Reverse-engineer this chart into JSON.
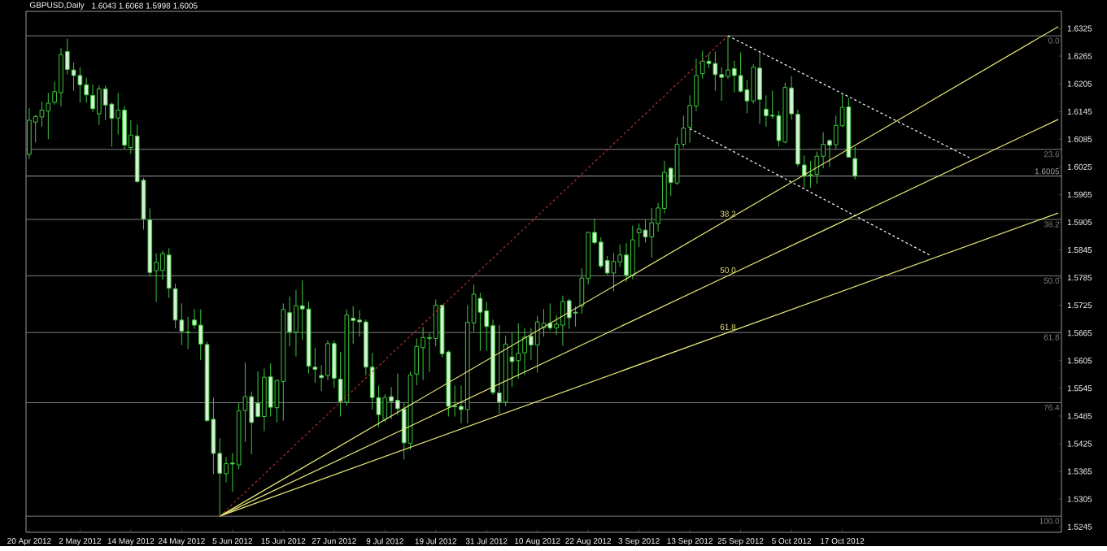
{
  "chart_data": {
    "type": "candlestick",
    "title": "GBPUSD,Daily",
    "subtitle": "1.6043 1.6068 1.5998 1.6005",
    "color": "#3cc83c",
    "categories": [
      "20 Apr 2012",
      null,
      null,
      null,
      null,
      null,
      null,
      null,
      "2 May 2012",
      null,
      null,
      null,
      null,
      null,
      null,
      null,
      "14 May 2012",
      null,
      null,
      null,
      null,
      null,
      null,
      null,
      "24 May 2012",
      null,
      null,
      null,
      null,
      null,
      null,
      null,
      "5 Jun 2012",
      null,
      null,
      null,
      null,
      null,
      null,
      null,
      "15 Jun 2012",
      null,
      null,
      null,
      null,
      null,
      null,
      null,
      "27 Jun 2012",
      null,
      null,
      null,
      null,
      null,
      null,
      null,
      "9 Jul 2012",
      null,
      null,
      null,
      null,
      null,
      null,
      null,
      "19 Jul 2012",
      null,
      null,
      null,
      null,
      null,
      null,
      null,
      "31 Jul 2012",
      null,
      null,
      null,
      null,
      null,
      null,
      null,
      "10 Aug 2012",
      null,
      null,
      null,
      null,
      null,
      null,
      null,
      "22 Aug 2012",
      null,
      null,
      null,
      null,
      null,
      null,
      null,
      "3 Sep 2012",
      null,
      null,
      null,
      null,
      null,
      null,
      null,
      "13 Sep 2012",
      null,
      null,
      null,
      null,
      null,
      null,
      null,
      "25 Sep 2012",
      null,
      null,
      null,
      null,
      null,
      null,
      null,
      "5 Oct 2012",
      null,
      null,
      null,
      null,
      null,
      null,
      null,
      "17 Oct 2012",
      null,
      null,
      null,
      null,
      null,
      null,
      null,
      null,
      null,
      null,
      null,
      null,
      null,
      null,
      null,
      null,
      null,
      null,
      null,
      null,
      null,
      null,
      null,
      null,
      null,
      null,
      null,
      null,
      null,
      null,
      null,
      null,
      null,
      null
    ],
    "ohlc": [
      [
        1.6052,
        1.6152,
        1.6042,
        1.6126
      ],
      [
        1.6122,
        1.6138,
        1.6078,
        1.6134
      ],
      [
        1.6133,
        1.6166,
        1.6112,
        1.6148
      ],
      [
        1.6146,
        1.6185,
        1.6085,
        1.6163
      ],
      [
        1.6165,
        1.621,
        1.616,
        1.6188
      ],
      [
        1.6186,
        1.6283,
        1.6156,
        1.6268
      ],
      [
        1.6275,
        1.6303,
        1.6225,
        1.6236
      ],
      [
        1.6235,
        1.6251,
        1.619,
        1.6223
      ],
      [
        1.6223,
        1.6241,
        1.6164,
        1.6203
      ],
      [
        1.6203,
        1.6218,
        1.6164,
        1.6181
      ],
      [
        1.618,
        1.6204,
        1.6144,
        1.6151
      ],
      [
        1.614,
        1.6201,
        1.6116,
        1.6194
      ],
      [
        1.6194,
        1.6201,
        1.6126,
        1.6159
      ],
      [
        1.6161,
        1.6164,
        1.6068,
        1.613
      ],
      [
        1.6131,
        1.6185,
        1.6095,
        1.6148
      ],
      [
        1.6148,
        1.6157,
        1.6063,
        1.6072
      ],
      [
        1.6067,
        1.6126,
        1.6053,
        1.6094
      ],
      [
        1.6092,
        1.6117,
        1.599,
        1.5993
      ],
      [
        1.5996,
        1.6001,
        1.5889,
        1.5912
      ],
      [
        1.591,
        1.5935,
        1.5787,
        1.5796
      ],
      [
        1.58,
        1.5838,
        1.5732,
        1.5818
      ],
      [
        1.5801,
        1.5843,
        1.578,
        1.5837
      ],
      [
        1.5834,
        1.5849,
        1.5741,
        1.5762
      ],
      [
        1.5761,
        1.5772,
        1.5675,
        1.5693
      ],
      [
        1.5693,
        1.5729,
        1.5639,
        1.5669
      ],
      [
        1.5667,
        1.57,
        1.563,
        1.5666
      ],
      [
        1.5693,
        1.5717,
        1.5674,
        1.5682
      ],
      [
        1.5682,
        1.5716,
        1.5606,
        1.5641
      ],
      [
        1.564,
        1.5646,
        1.5473,
        1.5475
      ],
      [
        1.5478,
        1.5525,
        1.5359,
        1.5404
      ],
      [
        1.5404,
        1.5437,
        1.5268,
        1.5361
      ],
      [
        1.536,
        1.5396,
        1.5341,
        1.5382
      ],
      [
        1.5383,
        1.5405,
        1.5321,
        1.5381
      ],
      [
        1.5379,
        1.5513,
        1.537,
        1.5496
      ],
      [
        1.5497,
        1.5601,
        1.5429,
        1.5527
      ],
      [
        1.5527,
        1.5538,
        1.5402,
        1.5471
      ],
      [
        1.5513,
        1.5582,
        1.5482,
        1.5484
      ],
      [
        1.5484,
        1.5588,
        1.5452,
        1.5569
      ],
      [
        1.557,
        1.5599,
        1.5484,
        1.5504
      ],
      [
        1.5503,
        1.5564,
        1.5471,
        1.5562
      ],
      [
        1.556,
        1.5729,
        1.5475,
        1.5716
      ],
      [
        1.5709,
        1.5744,
        1.5636,
        1.5667
      ],
      [
        1.5667,
        1.5758,
        1.5614,
        1.5724
      ],
      [
        1.5724,
        1.5779,
        1.565,
        1.5717
      ],
      [
        1.5717,
        1.5733,
        1.5577,
        1.5593
      ],
      [
        1.5591,
        1.5633,
        1.5557,
        1.5586
      ],
      [
        1.5573,
        1.5595,
        1.5539,
        1.5568
      ],
      [
        1.5573,
        1.5649,
        1.5563,
        1.5642
      ],
      [
        1.5642,
        1.5649,
        1.5546,
        1.5567
      ],
      [
        1.5565,
        1.5624,
        1.5484,
        1.5516
      ],
      [
        1.5515,
        1.5716,
        1.5507,
        1.5704
      ],
      [
        1.5697,
        1.5723,
        1.5641,
        1.5692
      ],
      [
        1.5693,
        1.5714,
        1.5657,
        1.5689
      ],
      [
        1.5689,
        1.5694,
        1.5573,
        1.5591
      ],
      [
        1.5591,
        1.5622,
        1.5499,
        1.5525
      ],
      [
        1.5525,
        1.5551,
        1.5461,
        1.5488
      ],
      [
        1.5478,
        1.5532,
        1.5472,
        1.5525
      ],
      [
        1.5527,
        1.5548,
        1.5478,
        1.5517
      ],
      [
        1.5519,
        1.5577,
        1.5487,
        1.5501
      ],
      [
        1.55,
        1.5514,
        1.5391,
        1.5427
      ],
      [
        1.5426,
        1.5581,
        1.5412,
        1.5574
      ],
      [
        1.5576,
        1.5653,
        1.5552,
        1.5636
      ],
      [
        1.5633,
        1.5678,
        1.5563,
        1.5655
      ],
      [
        1.5653,
        1.5664,
        1.558,
        1.5655
      ],
      [
        1.5653,
        1.5738,
        1.5636,
        1.5725
      ],
      [
        1.5725,
        1.5726,
        1.5612,
        1.562
      ],
      [
        1.5624,
        1.5627,
        1.5484,
        1.5506
      ],
      [
        1.5507,
        1.5551,
        1.5484,
        1.5505
      ],
      [
        1.5506,
        1.5551,
        1.5469,
        1.5499
      ],
      [
        1.5499,
        1.5725,
        1.5469,
        1.5688
      ],
      [
        1.5687,
        1.577,
        1.5668,
        1.5749
      ],
      [
        1.574,
        1.5752,
        1.5626,
        1.571
      ],
      [
        1.5713,
        1.5732,
        1.5626,
        1.5679
      ],
      [
        1.5681,
        1.5694,
        1.5531,
        1.5536
      ],
      [
        1.5535,
        1.5682,
        1.549,
        1.5515
      ],
      [
        1.5515,
        1.5659,
        1.5506,
        1.5641
      ],
      [
        1.5613,
        1.5666,
        1.5548,
        1.5603
      ],
      [
        1.5605,
        1.5686,
        1.5566,
        1.5621
      ],
      [
        1.5622,
        1.5676,
        1.5574,
        1.5656
      ],
      [
        1.5658,
        1.5676,
        1.5606,
        1.5639
      ],
      [
        1.5639,
        1.5702,
        1.5579,
        1.5689
      ],
      [
        1.5676,
        1.5717,
        1.5657,
        1.5686
      ],
      [
        1.5686,
        1.5729,
        1.5671,
        1.5676
      ],
      [
        1.5676,
        1.5703,
        1.5661,
        1.5684
      ],
      [
        1.5682,
        1.5746,
        1.5637,
        1.5733
      ],
      [
        1.5735,
        1.5739,
        1.5674,
        1.5698
      ],
      [
        1.571,
        1.5723,
        1.5679,
        1.5708
      ],
      [
        1.5723,
        1.5805,
        1.5707,
        1.5784
      ],
      [
        1.5783,
        1.5884,
        1.577,
        1.5883
      ],
      [
        1.5883,
        1.5913,
        1.5857,
        1.5861
      ],
      [
        1.5862,
        1.5872,
        1.5805,
        1.581
      ],
      [
        1.5822,
        1.5832,
        1.5791,
        1.5795
      ],
      [
        1.5795,
        1.5838,
        1.5755,
        1.582
      ],
      [
        1.5819,
        1.5857,
        1.5808,
        1.5834
      ],
      [
        1.5834,
        1.586,
        1.5776,
        1.579
      ],
      [
        1.579,
        1.5898,
        1.5781,
        1.5867
      ],
      [
        1.5882,
        1.5902,
        1.5851,
        1.589
      ],
      [
        1.5888,
        1.5911,
        1.5861,
        1.5873
      ],
      [
        1.5873,
        1.5936,
        1.5828,
        1.5904
      ],
      [
        1.5902,
        1.5947,
        1.5885,
        1.5936
      ],
      [
        1.5935,
        1.6038,
        1.5924,
        1.6013
      ],
      [
        1.6022,
        1.6024,
        1.5962,
        1.5991
      ],
      [
        1.599,
        1.6089,
        1.5986,
        1.6074
      ],
      [
        1.6074,
        1.6136,
        1.6067,
        1.6109
      ],
      [
        1.6111,
        1.618,
        1.6077,
        1.6158
      ],
      [
        1.6157,
        1.626,
        1.6146,
        1.6223
      ],
      [
        1.6227,
        1.6277,
        1.6216,
        1.6254
      ],
      [
        1.6254,
        1.6271,
        1.6239,
        1.6249
      ],
      [
        1.6249,
        1.6275,
        1.619,
        1.6225
      ],
      [
        1.6225,
        1.6241,
        1.6168,
        1.6219
      ],
      [
        1.6221,
        1.6309,
        1.6216,
        1.6235
      ],
      [
        1.6238,
        1.6255,
        1.6186,
        1.6223
      ],
      [
        1.6223,
        1.6273,
        1.6186,
        1.6189
      ],
      [
        1.6192,
        1.6213,
        1.6141,
        1.6168
      ],
      [
        1.6168,
        1.6248,
        1.6162,
        1.6241
      ],
      [
        1.6239,
        1.6275,
        1.6118,
        1.6171
      ],
      [
        1.615,
        1.618,
        1.6112,
        1.6136
      ],
      [
        1.6137,
        1.619,
        1.6129,
        1.6135
      ],
      [
        1.6136,
        1.6146,
        1.6069,
        1.6082
      ],
      [
        1.6079,
        1.6207,
        1.6076,
        1.6197
      ],
      [
        1.6196,
        1.6222,
        1.6127,
        1.614
      ],
      [
        1.6139,
        1.6149,
        1.6026,
        1.6031
      ],
      [
        1.6029,
        1.605,
        1.598,
        1.6005
      ],
      [
        1.6008,
        1.6038,
        1.598,
        1.6006
      ],
      [
        1.6009,
        1.6058,
        1.5988,
        1.6048
      ],
      [
        1.6048,
        1.61,
        1.6022,
        1.6074
      ],
      [
        1.6082,
        1.6085,
        1.6025,
        1.6072
      ],
      [
        1.6073,
        1.6136,
        1.6064,
        1.6115
      ],
      [
        1.6114,
        1.6182,
        1.6111,
        1.6154
      ],
      [
        1.6155,
        1.6174,
        1.6045,
        1.6046
      ],
      [
        1.6043,
        1.6068,
        1.5998,
        1.6005
      ],
      null,
      null,
      null,
      null,
      null,
      null,
      null,
      null,
      null,
      null,
      null,
      null,
      null,
      null,
      null,
      null,
      null,
      null,
      null,
      null,
      null,
      null,
      null,
      null,
      null,
      null,
      null,
      null,
      null,
      null,
      null,
      null
    ],
    "series": [
      {
        "type": "line",
        "name": "38.2",
        "color": "#e8e87a",
        "line_style": "solid",
        "values": [
          null,
          null,
          null,
          null,
          null,
          null,
          null,
          null,
          null,
          null,
          null,
          null,
          null,
          null,
          null,
          null,
          null,
          null,
          null,
          null,
          null,
          null,
          null,
          null,
          null,
          null,
          null,
          null,
          null,
          null,
          1.5268,
          null,
          null,
          null,
          null,
          null,
          null,
          null,
          null,
          null,
          null,
          null,
          null,
          null,
          null,
          null,
          null,
          null,
          null,
          null,
          null,
          null,
          null,
          null,
          null,
          null,
          null,
          null,
          null,
          null,
          null,
          null,
          null,
          null,
          null,
          null,
          null,
          null,
          null,
          null,
          null,
          null,
          null,
          null,
          null,
          null,
          null,
          null,
          null,
          null,
          null,
          null,
          null,
          null,
          null,
          null,
          null,
          null,
          null,
          null,
          null,
          null,
          null,
          null,
          null,
          null,
          null,
          null,
          null,
          null,
          null,
          null,
          null,
          null,
          null,
          null,
          null,
          null,
          null,
          null,
          1.5911,
          null,
          null,
          null,
          null,
          null,
          null,
          null,
          null,
          null,
          null,
          null,
          null,
          null,
          null,
          null,
          null,
          null,
          null,
          null,
          null,
          null,
          null,
          null,
          null,
          null,
          null,
          null,
          null,
          null,
          null,
          null,
          null,
          null,
          null,
          null,
          null,
          null,
          null,
          null,
          null,
          null,
          null,
          null,
          null,
          null,
          null,
          null,
          null,
          null,
          null,
          null,
          1.6329
        ]
      },
      {
        "type": "line",
        "name": "50.0",
        "color": "#e8e87a",
        "line_style": "solid",
        "values": [
          null,
          null,
          null,
          null,
          null,
          null,
          null,
          null,
          null,
          null,
          null,
          null,
          null,
          null,
          null,
          null,
          null,
          null,
          null,
          null,
          null,
          null,
          null,
          null,
          null,
          null,
          null,
          null,
          null,
          null,
          1.5268,
          null,
          null,
          null,
          null,
          null,
          null,
          null,
          null,
          null,
          null,
          null,
          null,
          null,
          null,
          null,
          null,
          null,
          null,
          null,
          null,
          null,
          null,
          null,
          null,
          null,
          null,
          null,
          null,
          null,
          null,
          null,
          null,
          null,
          null,
          null,
          null,
          null,
          null,
          null,
          null,
          null,
          null,
          null,
          null,
          null,
          null,
          null,
          null,
          null,
          null,
          null,
          null,
          null,
          null,
          null,
          null,
          null,
          null,
          null,
          null,
          null,
          null,
          null,
          null,
          null,
          null,
          null,
          null,
          null,
          null,
          null,
          null,
          null,
          null,
          null,
          null,
          null,
          null,
          null,
          1.5789,
          null,
          null,
          null,
          null,
          null,
          null,
          null,
          null,
          null,
          null,
          null,
          null,
          null,
          null,
          null,
          null,
          null,
          null,
          null,
          null,
          null,
          null,
          null,
          null,
          null,
          null,
          null,
          null,
          null,
          null,
          null,
          null,
          null,
          null,
          null,
          null,
          null,
          null,
          null,
          null,
          null,
          null,
          null,
          null,
          null,
          null,
          null,
          null,
          null,
          null,
          null,
          1.6128
        ]
      },
      {
        "type": "line",
        "name": "61.8",
        "color": "#e8e87a",
        "line_style": "solid",
        "values": [
          null,
          null,
          null,
          null,
          null,
          null,
          null,
          null,
          null,
          null,
          null,
          null,
          null,
          null,
          null,
          null,
          null,
          null,
          null,
          null,
          null,
          null,
          null,
          null,
          null,
          null,
          null,
          null,
          null,
          null,
          1.5268,
          null,
          null,
          null,
          null,
          null,
          null,
          null,
          null,
          null,
          null,
          null,
          null,
          null,
          null,
          null,
          null,
          null,
          null,
          null,
          null,
          null,
          null,
          null,
          null,
          null,
          null,
          null,
          null,
          null,
          null,
          null,
          null,
          null,
          null,
          null,
          null,
          null,
          null,
          null,
          null,
          null,
          null,
          null,
          null,
          null,
          null,
          null,
          null,
          null,
          null,
          null,
          null,
          null,
          null,
          null,
          null,
          null,
          null,
          null,
          null,
          null,
          null,
          null,
          null,
          null,
          null,
          null,
          null,
          null,
          null,
          null,
          null,
          null,
          null,
          null,
          null,
          null,
          null,
          null,
          1.5666,
          null,
          null,
          null,
          null,
          null,
          null,
          null,
          null,
          null,
          null,
          null,
          null,
          null,
          null,
          null,
          null,
          null,
          null,
          null,
          null,
          null,
          null,
          null,
          null,
          null,
          null,
          null,
          null,
          null,
          null,
          null,
          null,
          null,
          null,
          null,
          null,
          null,
          null,
          null,
          null,
          null,
          null,
          null,
          null,
          null,
          null,
          null,
          null,
          null,
          null,
          null,
          1.5925
        ]
      },
      {
        "type": "line",
        "color": "#b03030",
        "line_style": "dashed",
        "values": [
          null,
          null,
          null,
          null,
          null,
          null,
          null,
          null,
          null,
          null,
          null,
          null,
          null,
          null,
          null,
          null,
          null,
          null,
          null,
          null,
          null,
          null,
          null,
          null,
          null,
          null,
          null,
          null,
          null,
          null,
          1.5268,
          null,
          null,
          null,
          null,
          null,
          null,
          null,
          null,
          null,
          null,
          null,
          null,
          null,
          null,
          null,
          null,
          null,
          null,
          null,
          null,
          null,
          null,
          null,
          null,
          null,
          null,
          null,
          null,
          null,
          null,
          null,
          null,
          null,
          null,
          null,
          null,
          null,
          null,
          null,
          null,
          null,
          null,
          null,
          null,
          null,
          null,
          null,
          null,
          null,
          null,
          null,
          null,
          null,
          null,
          null,
          null,
          null,
          null,
          null,
          null,
          null,
          null,
          null,
          null,
          null,
          null,
          null,
          null,
          null,
          null,
          null,
          null,
          null,
          null,
          null,
          null,
          null,
          null,
          null,
          1.6309,
          null,
          null,
          null,
          null,
          null,
          null,
          null,
          null,
          null,
          null,
          null,
          null,
          null,
          null,
          null,
          null,
          null,
          null,
          null,
          null,
          null,
          null,
          null,
          null,
          null,
          null,
          null,
          null,
          null,
          null,
          null,
          null,
          null,
          null,
          null,
          null,
          null,
          null,
          null,
          null,
          null,
          null,
          null,
          null,
          null,
          null,
          null,
          null,
          null,
          null,
          null,
          null
        ]
      },
      {
        "type": "line",
        "color": "#ffffff",
        "line_style": "dashed",
        "values": [
          null,
          null,
          null,
          null,
          null,
          null,
          null,
          null,
          null,
          null,
          null,
          null,
          null,
          null,
          null,
          null,
          null,
          null,
          null,
          null,
          null,
          null,
          null,
          null,
          null,
          null,
          null,
          null,
          null,
          null,
          null,
          null,
          null,
          null,
          null,
          null,
          null,
          null,
          null,
          null,
          null,
          null,
          null,
          null,
          null,
          null,
          null,
          null,
          null,
          null,
          null,
          null,
          null,
          null,
          null,
          null,
          null,
          null,
          null,
          null,
          null,
          null,
          null,
          null,
          null,
          null,
          null,
          null,
          null,
          null,
          null,
          null,
          null,
          null,
          null,
          null,
          null,
          null,
          null,
          null,
          null,
          null,
          null,
          null,
          null,
          null,
          null,
          null,
          null,
          null,
          null,
          null,
          null,
          null,
          null,
          null,
          null,
          null,
          null,
          null,
          null,
          null,
          null,
          null,
          null,
          null,
          null,
          null,
          null,
          null,
          1.6309,
          null,
          null,
          null,
          null,
          null,
          null,
          null,
          null,
          null,
          null,
          null,
          null,
          null,
          null,
          null,
          null,
          null,
          null,
          null,
          null,
          null,
          null,
          null,
          null,
          null,
          null,
          null,
          null,
          null,
          null,
          null,
          null,
          null,
          null,
          null,
          null,
          null,
          1.6045,
          null,
          null,
          null,
          null,
          null,
          null,
          null,
          null,
          null,
          null,
          null,
          null,
          null,
          null
        ]
      },
      {
        "type": "line",
        "color": "#ffffff",
        "line_style": "dashed",
        "values": [
          null,
          null,
          null,
          null,
          null,
          null,
          null,
          null,
          null,
          null,
          null,
          null,
          null,
          null,
          null,
          null,
          null,
          null,
          null,
          null,
          null,
          null,
          null,
          null,
          null,
          null,
          null,
          null,
          null,
          null,
          null,
          null,
          null,
          null,
          null,
          null,
          null,
          null,
          null,
          null,
          null,
          null,
          null,
          null,
          null,
          null,
          null,
          null,
          null,
          null,
          null,
          null,
          null,
          null,
          null,
          null,
          null,
          null,
          null,
          null,
          null,
          null,
          null,
          null,
          null,
          null,
          null,
          null,
          null,
          null,
          null,
          null,
          null,
          null,
          null,
          null,
          null,
          null,
          null,
          null,
          null,
          null,
          null,
          null,
          null,
          null,
          null,
          null,
          null,
          null,
          null,
          null,
          null,
          null,
          null,
          null,
          null,
          null,
          null,
          null,
          null,
          null,
          null,
          null,
          1.6108,
          null,
          null,
          null,
          null,
          null,
          null,
          null,
          null,
          null,
          null,
          null,
          null,
          null,
          null,
          null,
          null,
          null,
          null,
          null,
          null,
          null,
          null,
          null,
          null,
          null,
          null,
          null,
          null,
          null,
          null,
          null,
          null,
          null,
          null,
          null,
          null,
          null,
          1.5832,
          null,
          null,
          null,
          null,
          null,
          null,
          null,
          null,
          null,
          null,
          null,
          null,
          null,
          null,
          null,
          null,
          null,
          null,
          null,
          null
        ]
      }
    ],
    "ref_lines": [
      {
        "axis": "y",
        "value": 1.6309,
        "color": "#808080"
      },
      {
        "axis": "y",
        "value": 1.6063,
        "color": "#808080"
      },
      {
        "axis": "y",
        "value": 1.5911,
        "color": "#808080"
      },
      {
        "axis": "y",
        "value": 1.5789,
        "color": "#808080"
      },
      {
        "axis": "y",
        "value": 1.5666,
        "color": "#808080"
      },
      {
        "axis": "y",
        "value": 1.5514,
        "color": "#808080"
      },
      {
        "axis": "y",
        "value": 1.5268,
        "color": "#808080"
      },
      {
        "axis": "y",
        "value": 1.6005,
        "label": "1.6005",
        "color": "#a0a0a0"
      }
    ],
    "annotations": [
      {
        "text": "0.0",
        "y": 1.6309
      },
      {
        "text": "23.6",
        "y": 1.6063
      },
      {
        "text": "38.2",
        "y": 1.5911
      },
      {
        "text": "50.0",
        "y": 1.5789
      },
      {
        "text": "61.8",
        "y": 1.5666
      },
      {
        "text": "76.4",
        "y": 1.5514
      },
      {
        "text": "100.0",
        "y": 1.5268
      }
    ],
    "ylim": [
      1.5233,
      1.6362
    ],
    "yticks": [
      1.6325,
      1.6265,
      1.6205,
      1.6145,
      1.6085,
      1.6025,
      1.5965,
      1.5905,
      1.5845,
      1.5785,
      1.5725,
      1.5665,
      1.5605,
      1.5545,
      1.5485,
      1.5425,
      1.5365,
      1.5305,
      1.5245
    ]
  }
}
